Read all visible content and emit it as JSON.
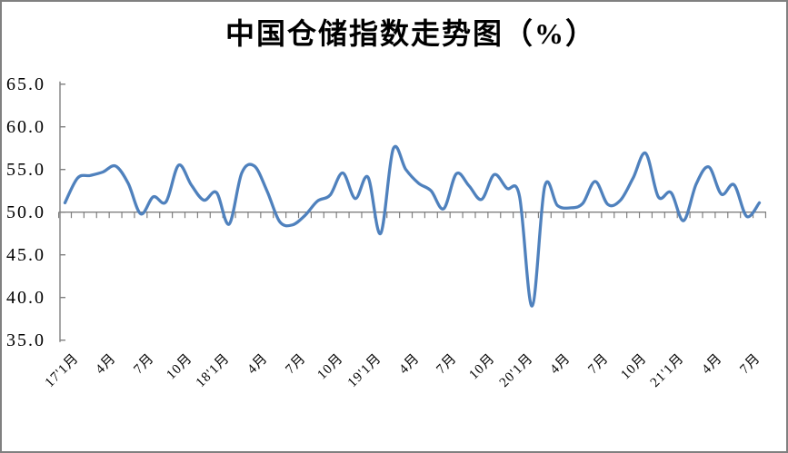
{
  "window": {
    "background": "#ffffff",
    "border_color": "#808080"
  },
  "chart_data": {
    "type": "line",
    "title": "中国仓储指数走势图（%）",
    "xlabel": "",
    "ylabel": "",
    "ylim": [
      35,
      65
    ],
    "y_tick_step": 5,
    "y_tick_labels": [
      "65.0",
      "60.0",
      "55.0",
      "50.0",
      "45.0",
      "40.0",
      "35.0"
    ],
    "x_axis_cross_value": 50,
    "x_tick_label_interval": 3,
    "x_tick_labels": [
      "17'1月",
      "4月",
      "7月",
      "10月",
      "18'1月",
      "4月",
      "7月",
      "10月",
      "19'1月",
      "4月",
      "7月",
      "10月",
      "20'1月",
      "4月",
      "7月",
      "10月",
      "21'1月",
      "4月",
      "7月"
    ],
    "grid": false,
    "legend_position": "none",
    "smooth": true,
    "axis_color": "#808080",
    "series": [
      {
        "name": "中国仓储指数",
        "color": "#4F81BD",
        "start_month": "2017-01",
        "end_month": "2021-08",
        "values": [
          51.1,
          54.0,
          54.3,
          54.7,
          55.4,
          53.4,
          49.8,
          51.8,
          51.2,
          55.5,
          53.2,
          51.4,
          52.3,
          48.6,
          54.6,
          55.4,
          52.5,
          48.9,
          48.5,
          49.6,
          51.3,
          52.0,
          54.6,
          51.6,
          54.1,
          47.5,
          57.4,
          55.0,
          53.4,
          52.5,
          50.4,
          54.5,
          53.1,
          51.5,
          54.4,
          52.8,
          51.9,
          39.0,
          53.0,
          50.8,
          50.5,
          51.0,
          53.6,
          50.9,
          51.4,
          54.0,
          56.9,
          51.8,
          52.3,
          49.0,
          53.3,
          55.3,
          52.1,
          53.2,
          49.5,
          51.1
        ]
      }
    ]
  }
}
